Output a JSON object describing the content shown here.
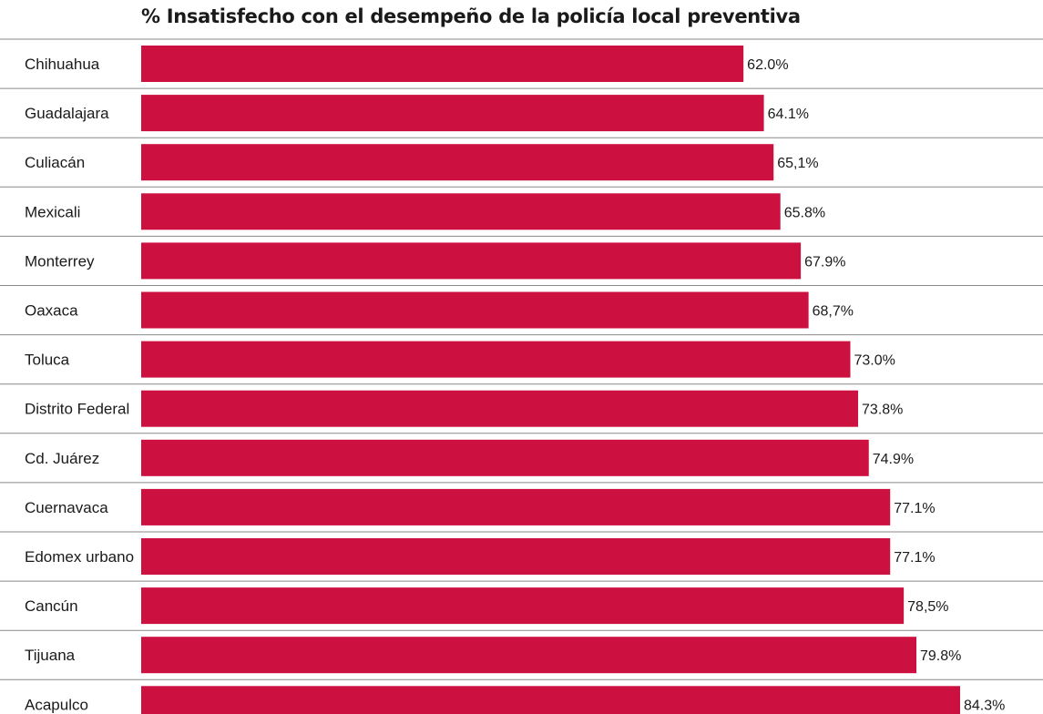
{
  "chart_data": {
    "type": "bar",
    "orientation": "horizontal",
    "title": "% Insatisfecho con el desempeño de la policía local preventiva",
    "categories": [
      "Chihuahua",
      "Guadalajara",
      "Culiacán",
      "Mexicali",
      "Monterrey",
      "Oaxaca",
      "Toluca",
      "Distrito Federal",
      "Cd. Juárez",
      "Cuernavaca",
      "Edomex urbano",
      "Cancún",
      "Tijuana",
      "Acapulco"
    ],
    "values": [
      62.0,
      64.1,
      65.1,
      65.8,
      67.9,
      68.7,
      73.0,
      73.8,
      74.9,
      77.1,
      77.1,
      78.5,
      79.8,
      84.3
    ],
    "value_labels": [
      "62.0%",
      "64.1%",
      "65,1%",
      "65.8%",
      "67.9%",
      "68,7%",
      "73.0%",
      "73.8%",
      "74.9%",
      "77.1%",
      "77.1%",
      "78,5%",
      "79.8%",
      "84.3%"
    ],
    "bar_color": "#cc1140",
    "xlim": [
      0,
      100
    ],
    "grid": false,
    "legend": "none"
  }
}
